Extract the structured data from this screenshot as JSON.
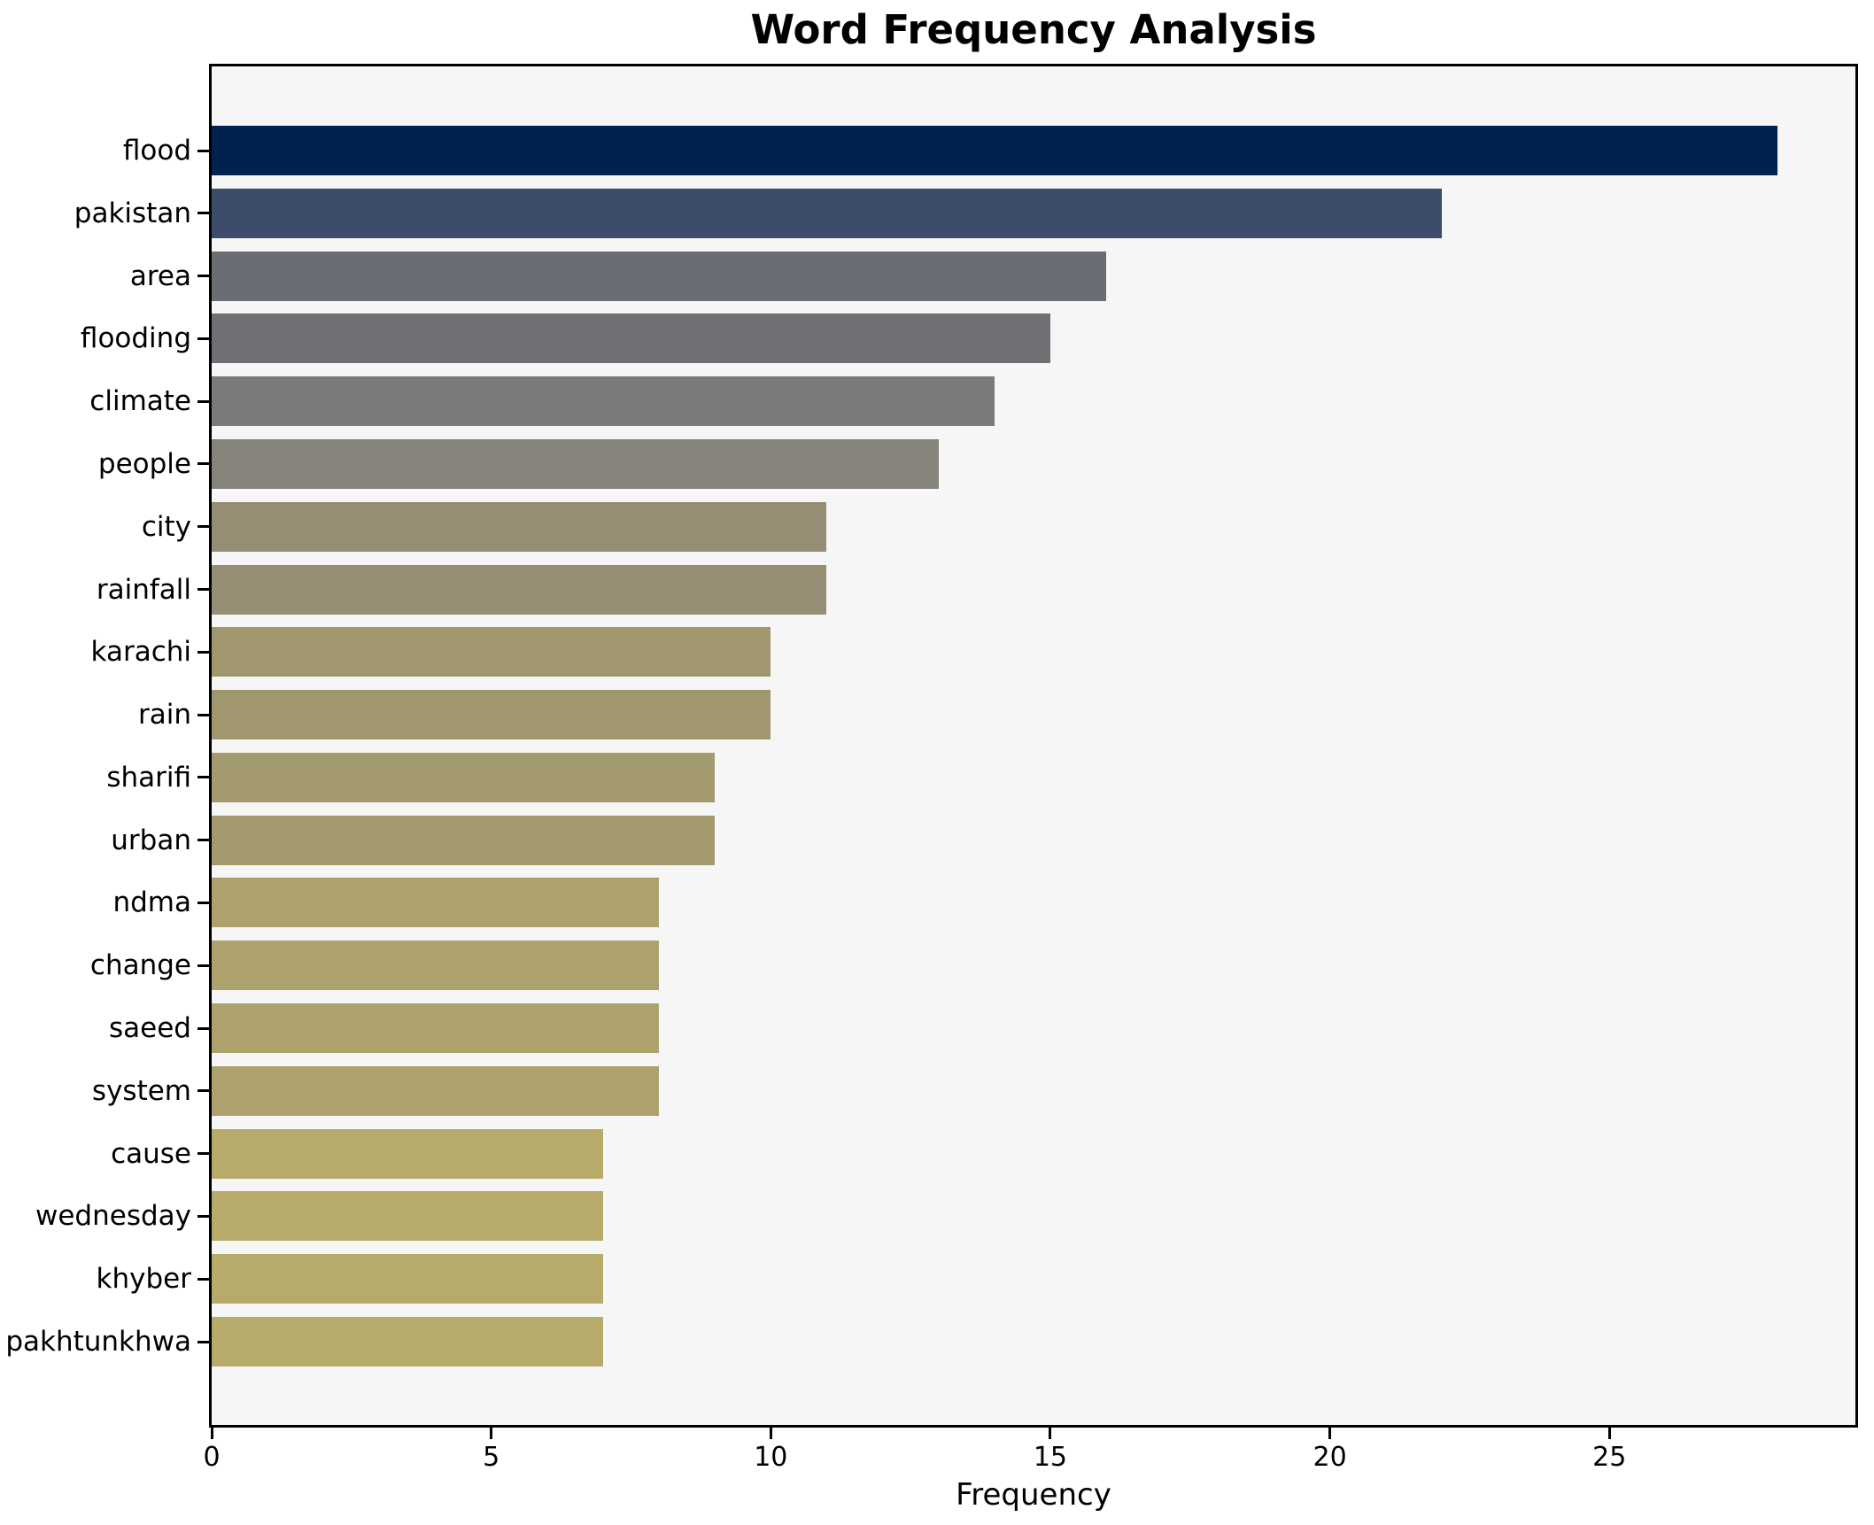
{
  "title": "Word Frequency Analysis",
  "chart_data": {
    "type": "bar",
    "orientation": "horizontal",
    "title": "Word Frequency Analysis",
    "xlabel": "Frequency",
    "ylabel": "",
    "categories": [
      "flood",
      "pakistan",
      "area",
      "flooding",
      "climate",
      "people",
      "city",
      "rainfall",
      "karachi",
      "rain",
      "sharifi",
      "urban",
      "ndma",
      "change",
      "saeed",
      "system",
      "cause",
      "wednesday",
      "khyber",
      "pakhtunkhwa"
    ],
    "values": [
      28,
      22,
      16,
      15,
      14,
      13,
      11,
      11,
      10,
      10,
      9,
      9,
      8,
      8,
      8,
      8,
      7,
      7,
      7,
      7
    ],
    "bar_colors": [
      "#00224e",
      "#3d4c6b",
      "#696d74",
      "#6e7074",
      "#7a7a78",
      "#86837b",
      "#958e74",
      "#958e74",
      "#a0976f",
      "#a0976f",
      "#a49a70",
      "#a49a70",
      "#ada26e",
      "#ada26e",
      "#ada26e",
      "#ada26e",
      "#b6ab6a",
      "#b6ab6a",
      "#b6ab6a",
      "#b6ab6a"
    ],
    "x_ticks": [
      0,
      5,
      10,
      15,
      20,
      25
    ],
    "xlim": [
      0,
      29.4
    ],
    "grid": false,
    "legend": null,
    "plot_background": "#f6f6f6",
    "figure_background": "#ffffff",
    "spine_color": "#000000"
  }
}
